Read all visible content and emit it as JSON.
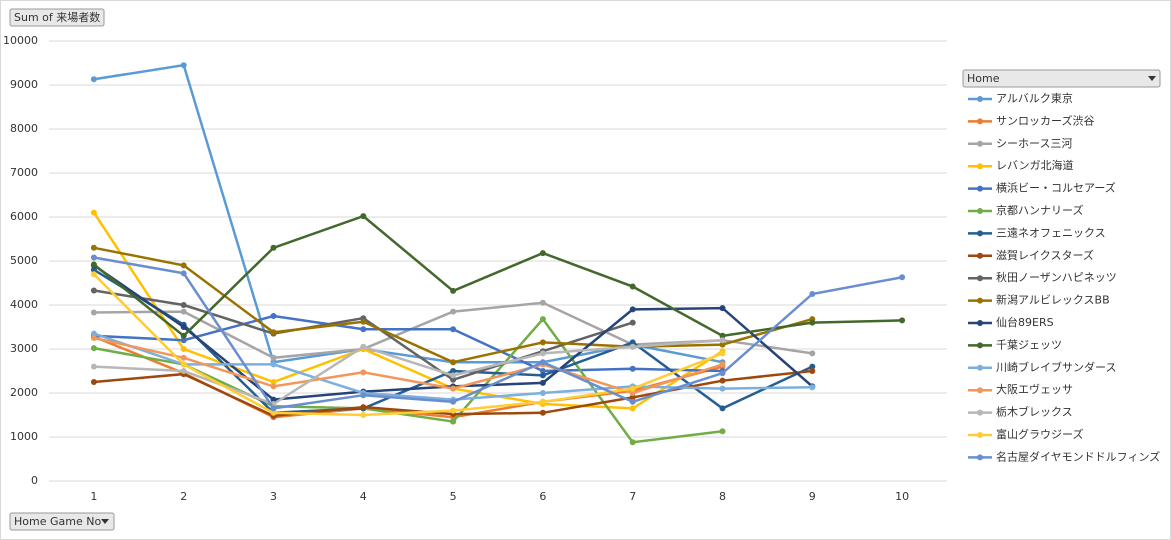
{
  "chart_data": {
    "type": "line",
    "value_field": "Sum of 来場者数",
    "category_field": "Home Game No",
    "legend_title": "Home",
    "categories": [
      "1",
      "2",
      "3",
      "4",
      "5",
      "6",
      "7",
      "8",
      "9",
      "10"
    ],
    "ylim": [
      0,
      10000
    ],
    "yticks": [
      0,
      1000,
      2000,
      3000,
      4000,
      5000,
      6000,
      7000,
      8000,
      9000,
      10000
    ],
    "grid": true,
    "legend": "right",
    "series": [
      {
        "name": "アルバルク東京",
        "color": "#5b9bd5",
        "values": [
          9130,
          9450,
          2700,
          3000,
          2700,
          2700,
          3100,
          2700,
          null,
          null
        ]
      },
      {
        "name": "サンロッカーズ渋谷",
        "color": "#ed7d31",
        "values": [
          3280,
          2450,
          1450,
          1650,
          1450,
          1800,
          2050,
          2600,
          null,
          null
        ]
      },
      {
        "name": "シーホース三河",
        "color": "#a5a5a5",
        "values": [
          3830,
          3850,
          2800,
          3000,
          3850,
          4050,
          3100,
          3200,
          2900,
          null
        ]
      },
      {
        "name": "レバンガ北海道",
        "color": "#ffc000",
        "values": [
          6100,
          3000,
          2250,
          3000,
          2100,
          1750,
          1650,
          2950,
          null,
          null
        ]
      },
      {
        "name": "横浜ビー・コルセアーズ",
        "color": "#4472c4",
        "values": [
          3300,
          3200,
          3750,
          3450,
          3450,
          2500,
          2550,
          2500,
          null,
          null
        ]
      },
      {
        "name": "京都ハンナリーズ",
        "color": "#70ad47",
        "values": [
          3020,
          2650,
          1700,
          1650,
          1350,
          3680,
          880,
          1130,
          null,
          null
        ]
      },
      {
        "name": "三遠ネオフェニックス",
        "color": "#255e91",
        "values": [
          4800,
          3550,
          1550,
          1650,
          2500,
          2400,
          3150,
          1650,
          2600,
          null
        ]
      },
      {
        "name": "滋賀レイクスターズ",
        "color": "#9e480e",
        "values": [
          2250,
          2430,
          1480,
          1680,
          1520,
          1550,
          1900,
          2280,
          2500,
          null
        ]
      },
      {
        "name": "秋田ノーザンハピネッツ",
        "color": "#636363",
        "values": [
          4330,
          4000,
          3350,
          3700,
          2300,
          2950,
          3600,
          null,
          null,
          null
        ]
      },
      {
        "name": "新潟アルビレックスBB",
        "color": "#997300",
        "values": [
          5300,
          4900,
          3380,
          3620,
          2700,
          3150,
          3050,
          3100,
          3680,
          null
        ]
      },
      {
        "name": "仙台89ERS",
        "color": "#264478",
        "values": [
          4900,
          3500,
          1850,
          2030,
          2150,
          2230,
          3900,
          3930,
          2150,
          null
        ]
      },
      {
        "name": "千葉ジェッツ",
        "color": "#43682b",
        "values": [
          4920,
          3300,
          5300,
          6020,
          4320,
          5180,
          4420,
          3300,
          3600,
          3650
        ]
      },
      {
        "name": "川崎ブレイブサンダース",
        "color": "#7cafdd",
        "values": [
          3350,
          2650,
          2650,
          2000,
          1850,
          2000,
          2150,
          2100,
          2130,
          null
        ]
      },
      {
        "name": "大阪エヴェッサ",
        "color": "#f1975a",
        "values": [
          3250,
          2800,
          2150,
          2470,
          2100,
          2650,
          2000,
          2650,
          null,
          null
        ]
      },
      {
        "name": "栃木ブレックス",
        "color": "#b7b7b7",
        "values": [
          2600,
          2500,
          1750,
          3050,
          2400,
          2900,
          3050,
          3200,
          null,
          null
        ]
      },
      {
        "name": "富山グラウジーズ",
        "color": "#ffcd33",
        "values": [
          4700,
          2650,
          1550,
          1500,
          1600,
          1800,
          2100,
          2900,
          null,
          null
        ]
      },
      {
        "name": "名古屋ダイヤモンドドルフィンズ",
        "color": "#698ed0",
        "values": [
          5080,
          4720,
          1650,
          1950,
          1800,
          2700,
          1800,
          2450,
          4250,
          4630
        ]
      }
    ]
  }
}
